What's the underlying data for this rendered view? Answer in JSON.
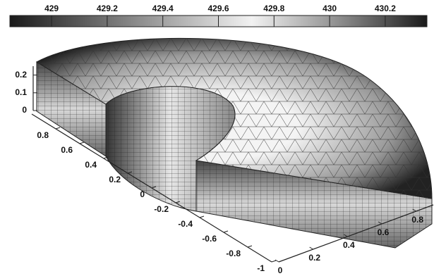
{
  "chart_data": {
    "type": "surface3d",
    "colorbar": {
      "clim": [
        428.85,
        430.35
      ],
      "ticks": [
        429,
        429.2,
        429.4,
        429.6,
        429.8,
        430,
        430.2
      ]
    },
    "xlim": [
      0,
      0.9
    ],
    "xticks": [
      0,
      0.2,
      0.4,
      0.6,
      0.8
    ],
    "ylim": [
      -1,
      1
    ],
    "yticks": [
      0.8,
      0.6,
      0.4,
      0.2,
      0,
      -0.2,
      -0.4,
      -0.6,
      -0.8,
      -1
    ],
    "zlim": [
      0,
      0.25
    ],
    "zticks": [
      0,
      0.1,
      0.2
    ]
  }
}
